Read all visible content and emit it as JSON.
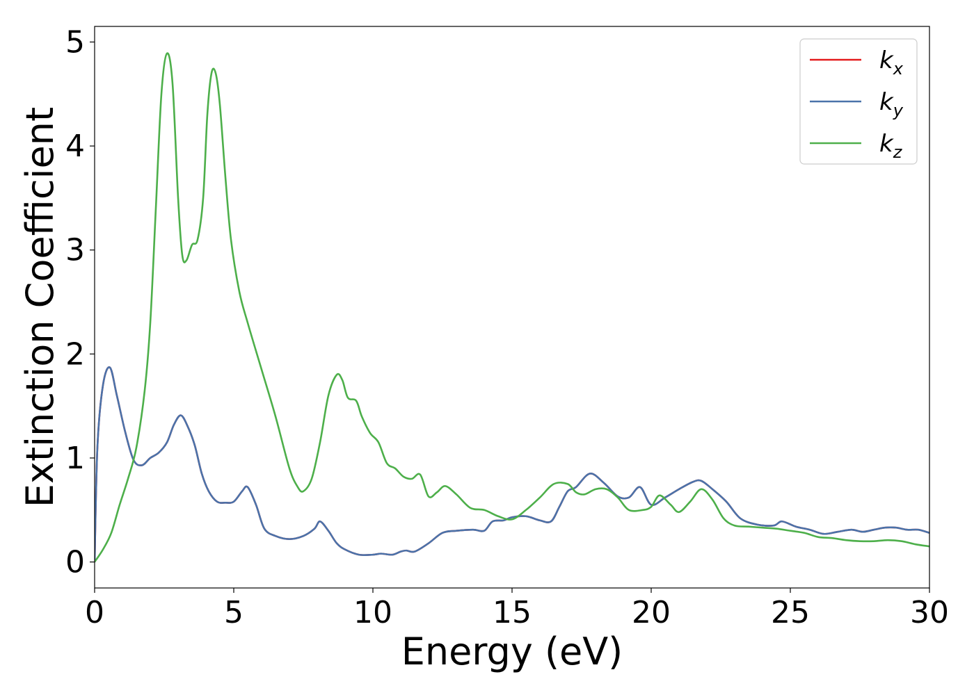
{
  "chart_data": {
    "type": "line",
    "xlabel": "Energy (eV)",
    "ylabel": "Extinction Coefficient",
    "xlim": [
      0,
      30
    ],
    "ylim": [
      -0.25,
      5.15
    ],
    "xticks": [
      "0",
      "5",
      "10",
      "15",
      "20",
      "25",
      "30"
    ],
    "yticks": [
      "0",
      "1",
      "2",
      "3",
      "4",
      "5"
    ],
    "grid": false,
    "legend_position": "top-right",
    "series": [
      {
        "name": "k",
        "subscript": "x",
        "color": "#e41a1c",
        "x": [
          0,
          0.1,
          0.3,
          0.55,
          0.8,
          1.1,
          1.4,
          1.7,
          2.0,
          2.3,
          2.6,
          2.85,
          3.1,
          3.35,
          3.6,
          3.85,
          4.1,
          4.4,
          4.7,
          5.0,
          5.3,
          5.5,
          5.8,
          6.1,
          6.5,
          7.0,
          7.5,
          7.9,
          8.1,
          8.4,
          8.7,
          9.0,
          9.5,
          10.0,
          10.3,
          10.7,
          11.0,
          11.2,
          11.5,
          12.0,
          12.5,
          13.0,
          13.6,
          14.0,
          14.3,
          14.7,
          15.0,
          15.5,
          16.0,
          16.4,
          16.7,
          17.0,
          17.3,
          17.8,
          18.3,
          18.8,
          19.2,
          19.6,
          20.0,
          20.5,
          21.0,
          21.5,
          21.8,
          22.2,
          22.7,
          23.2,
          23.8,
          24.4,
          24.7,
          25.2,
          25.7,
          26.2,
          26.7,
          27.2,
          27.6,
          28.0,
          28.4,
          28.8,
          29.2,
          29.6,
          30.0
        ],
        "y": [
          0,
          1.1,
          1.7,
          1.87,
          1.6,
          1.25,
          0.98,
          0.93,
          1.0,
          1.05,
          1.15,
          1.32,
          1.41,
          1.3,
          1.12,
          0.85,
          0.68,
          0.58,
          0.57,
          0.58,
          0.68,
          0.72,
          0.55,
          0.32,
          0.25,
          0.22,
          0.25,
          0.32,
          0.39,
          0.3,
          0.18,
          0.12,
          0.07,
          0.07,
          0.08,
          0.07,
          0.1,
          0.11,
          0.1,
          0.18,
          0.28,
          0.3,
          0.31,
          0.3,
          0.39,
          0.4,
          0.43,
          0.44,
          0.4,
          0.39,
          0.53,
          0.68,
          0.72,
          0.85,
          0.76,
          0.63,
          0.62,
          0.72,
          0.55,
          0.62,
          0.7,
          0.77,
          0.78,
          0.7,
          0.58,
          0.42,
          0.36,
          0.35,
          0.39,
          0.34,
          0.31,
          0.27,
          0.29,
          0.31,
          0.29,
          0.31,
          0.33,
          0.33,
          0.31,
          0.31,
          0.28
        ]
      },
      {
        "name": "k",
        "subscript": "y",
        "color": "#4a73aa",
        "x": [
          0,
          0.1,
          0.3,
          0.55,
          0.8,
          1.1,
          1.4,
          1.7,
          2.0,
          2.3,
          2.6,
          2.85,
          3.1,
          3.35,
          3.6,
          3.85,
          4.1,
          4.4,
          4.7,
          5.0,
          5.3,
          5.5,
          5.8,
          6.1,
          6.5,
          7.0,
          7.5,
          7.9,
          8.1,
          8.4,
          8.7,
          9.0,
          9.5,
          10.0,
          10.3,
          10.7,
          11.0,
          11.2,
          11.5,
          12.0,
          12.5,
          13.0,
          13.6,
          14.0,
          14.3,
          14.7,
          15.0,
          15.5,
          16.0,
          16.4,
          16.7,
          17.0,
          17.3,
          17.8,
          18.3,
          18.8,
          19.2,
          19.6,
          20.0,
          20.5,
          21.0,
          21.5,
          21.8,
          22.2,
          22.7,
          23.2,
          23.8,
          24.4,
          24.7,
          25.2,
          25.7,
          26.2,
          26.7,
          27.2,
          27.6,
          28.0,
          28.4,
          28.8,
          29.2,
          29.6,
          30.0
        ],
        "y": [
          0,
          1.1,
          1.7,
          1.87,
          1.6,
          1.25,
          0.98,
          0.93,
          1.0,
          1.05,
          1.15,
          1.32,
          1.41,
          1.3,
          1.12,
          0.85,
          0.68,
          0.58,
          0.57,
          0.58,
          0.68,
          0.72,
          0.55,
          0.32,
          0.25,
          0.22,
          0.25,
          0.32,
          0.39,
          0.3,
          0.18,
          0.12,
          0.07,
          0.07,
          0.08,
          0.07,
          0.1,
          0.11,
          0.1,
          0.18,
          0.28,
          0.3,
          0.31,
          0.3,
          0.39,
          0.4,
          0.43,
          0.44,
          0.4,
          0.39,
          0.53,
          0.68,
          0.72,
          0.85,
          0.76,
          0.63,
          0.62,
          0.72,
          0.55,
          0.62,
          0.7,
          0.77,
          0.78,
          0.7,
          0.58,
          0.42,
          0.36,
          0.35,
          0.39,
          0.34,
          0.31,
          0.27,
          0.29,
          0.31,
          0.29,
          0.31,
          0.33,
          0.33,
          0.31,
          0.31,
          0.28
        ]
      },
      {
        "name": "k",
        "subscript": "z",
        "color": "#4daf4a",
        "x": [
          0,
          0.3,
          0.6,
          0.9,
          1.2,
          1.5,
          1.8,
          2.0,
          2.2,
          2.4,
          2.6,
          2.8,
          3.0,
          3.15,
          3.3,
          3.5,
          3.7,
          3.9,
          4.05,
          4.2,
          4.35,
          4.5,
          4.7,
          4.9,
          5.2,
          5.5,
          6.0,
          6.5,
          7.0,
          7.3,
          7.5,
          7.8,
          8.1,
          8.4,
          8.7,
          8.9,
          9.1,
          9.4,
          9.6,
          9.9,
          10.2,
          10.5,
          10.8,
          11.1,
          11.4,
          11.7,
          12.0,
          12.3,
          12.6,
          13.0,
          13.5,
          14.0,
          14.5,
          15.0,
          15.5,
          16.0,
          16.5,
          17.0,
          17.3,
          17.6,
          18.0,
          18.4,
          18.8,
          19.2,
          19.7,
          20.0,
          20.3,
          20.7,
          21.0,
          21.4,
          21.8,
          22.2,
          22.6,
          23.0,
          23.5,
          24.0,
          24.5,
          25.0,
          25.5,
          26.0,
          26.5,
          27.0,
          27.5,
          28.0,
          28.5,
          29.0,
          29.5,
          30.0
        ],
        "y": [
          0,
          0.12,
          0.28,
          0.55,
          0.8,
          1.1,
          1.65,
          2.3,
          3.4,
          4.5,
          4.89,
          4.6,
          3.5,
          2.95,
          2.9,
          3.05,
          3.1,
          3.5,
          4.3,
          4.7,
          4.7,
          4.4,
          3.7,
          3.1,
          2.6,
          2.3,
          1.85,
          1.4,
          0.9,
          0.72,
          0.68,
          0.8,
          1.15,
          1.6,
          1.8,
          1.75,
          1.58,
          1.55,
          1.4,
          1.24,
          1.15,
          0.95,
          0.9,
          0.82,
          0.8,
          0.84,
          0.63,
          0.67,
          0.73,
          0.65,
          0.52,
          0.5,
          0.44,
          0.41,
          0.5,
          0.62,
          0.75,
          0.75,
          0.67,
          0.65,
          0.7,
          0.7,
          0.62,
          0.5,
          0.5,
          0.53,
          0.64,
          0.55,
          0.48,
          0.58,
          0.7,
          0.6,
          0.42,
          0.35,
          0.34,
          0.33,
          0.32,
          0.3,
          0.28,
          0.24,
          0.23,
          0.21,
          0.2,
          0.2,
          0.21,
          0.2,
          0.17,
          0.15
        ]
      }
    ]
  }
}
